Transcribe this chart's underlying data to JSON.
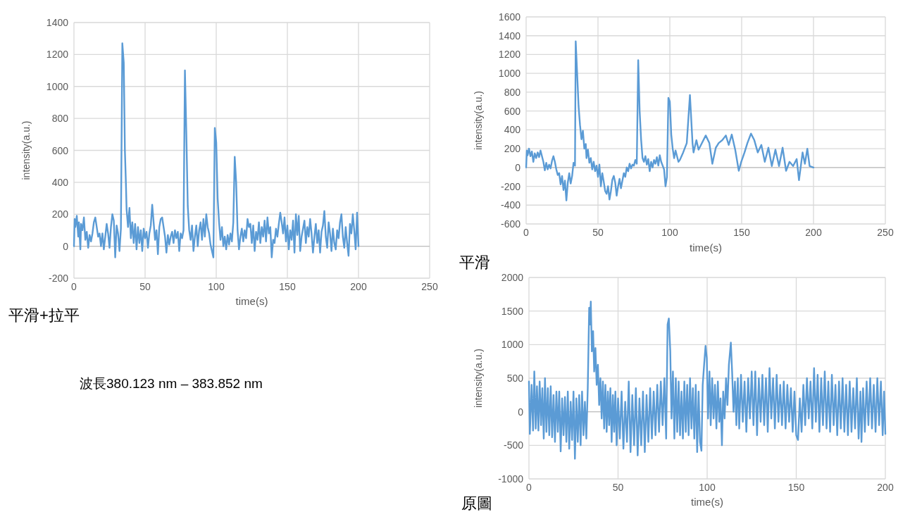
{
  "chart_data": [
    {
      "type": "line",
      "title": "平滑+拉平",
      "xlabel": "time(s)",
      "ylabel": "intensity(a.u.)",
      "color": "#5b9bd5",
      "grid": true,
      "xlim": [
        0,
        250
      ],
      "ylim": [
        -200,
        1400
      ],
      "xticks": [
        0,
        50,
        100,
        150,
        200,
        250
      ],
      "yticks": [
        -200,
        0,
        200,
        400,
        600,
        800,
        1000,
        1200,
        1400
      ],
      "x": [
        0,
        0.5,
        1,
        2,
        3,
        3.5,
        4.5,
        5,
        6,
        7,
        8,
        9,
        10,
        11,
        12,
        13,
        14,
        15,
        16,
        17,
        18,
        19,
        20,
        21,
        22,
        23,
        24,
        25,
        26,
        27,
        28,
        29,
        30,
        31,
        32,
        33,
        34,
        35,
        35.8,
        36.5,
        37,
        38,
        39,
        40,
        41,
        42,
        43,
        44,
        45,
        46,
        47,
        48,
        49,
        50,
        51,
        52,
        53,
        54,
        55,
        56,
        57,
        58,
        59,
        60,
        61,
        62,
        63,
        64,
        65,
        66,
        67,
        68,
        69,
        70,
        71,
        72,
        73,
        74,
        75,
        76,
        77,
        78,
        79,
        80,
        81,
        82,
        83,
        84,
        85,
        86,
        87,
        88,
        89,
        90,
        91,
        92,
        93,
        94,
        95,
        96,
        97,
        98,
        99,
        100,
        101,
        102,
        103,
        104,
        105,
        106,
        107,
        108,
        109,
        110,
        111,
        112,
        113,
        114,
        115,
        116,
        117,
        118,
        119,
        120,
        121,
        122,
        123,
        124,
        125,
        126,
        127,
        128,
        129,
        130,
        131,
        132,
        133,
        134,
        135,
        136,
        137,
        138,
        139,
        140,
        141,
        142,
        143,
        144,
        145,
        146,
        147,
        148,
        149,
        150,
        151,
        152,
        153,
        154,
        155,
        156,
        157,
        158,
        159,
        160,
        161,
        162,
        163,
        164,
        165,
        166,
        167,
        168,
        169,
        170,
        171,
        172,
        173,
        174,
        175,
        176,
        177,
        178,
        179,
        180,
        181,
        182,
        183,
        184,
        185,
        186,
        187,
        188,
        189,
        190,
        191,
        192,
        193,
        194,
        195,
        196,
        197,
        198,
        199,
        200
      ],
      "values": [
        0,
        170,
        120,
        190,
        60,
        150,
        -20,
        140,
        100,
        180,
        40,
        90,
        -10,
        70,
        30,
        80,
        150,
        180,
        120,
        60,
        80,
        0,
        80,
        -20,
        60,
        140,
        80,
        -10,
        120,
        200,
        160,
        -70,
        130,
        80,
        -30,
        110,
        1270,
        1150,
        600,
        400,
        230,
        120,
        240,
        50,
        150,
        20,
        140,
        -20,
        120,
        20,
        100,
        -30,
        110,
        50,
        90,
        -10,
        80,
        130,
        260,
        150,
        40,
        100,
        -50,
        120,
        170,
        180,
        120,
        60,
        -40,
        70,
        10,
        60,
        90,
        20,
        100,
        50,
        90,
        -30,
        80,
        50,
        100,
        1100,
        700,
        250,
        100,
        40,
        130,
        -30,
        60,
        130,
        0,
        100,
        150,
        40,
        170,
        60,
        200,
        120,
        80,
        10,
        -30,
        -70,
        740,
        650,
        300,
        150,
        40,
        120,
        0,
        60,
        -20,
        70,
        10,
        80,
        30,
        150,
        560,
        400,
        100,
        -20,
        60,
        110,
        30,
        100,
        50,
        170,
        120,
        140,
        20,
        130,
        -30,
        90,
        40,
        150,
        20,
        120,
        60,
        160,
        30,
        180,
        80,
        120,
        -70,
        40,
        20,
        110,
        60,
        140,
        210,
        150,
        80,
        180,
        30,
        130,
        -20,
        100,
        40,
        160,
        -40,
        200,
        70,
        190,
        -30,
        60,
        110,
        160,
        20,
        120,
        60,
        170,
        80,
        -40,
        60,
        140,
        20,
        100,
        -40,
        90,
        130,
        220,
        60,
        -10,
        150,
        80,
        -30,
        110,
        20,
        -20,
        100,
        50,
        150,
        200,
        60,
        -10,
        120,
        20,
        -60,
        140,
        80,
        200,
        100,
        -20,
        210,
        0
      ]
    },
    {
      "type": "line",
      "title": "平滑",
      "xlabel": "time(s)",
      "ylabel": "intensity(a.u.)",
      "color": "#5b9bd5",
      "grid": true,
      "xlim": [
        0,
        250
      ],
      "ylim": [
        -600,
        1600
      ],
      "xticks": [
        0,
        50,
        100,
        150,
        200,
        250
      ],
      "yticks": [
        -600,
        -400,
        -200,
        0,
        200,
        400,
        600,
        800,
        1000,
        1200,
        1400,
        1600
      ],
      "x": [
        0,
        0.5,
        1,
        2,
        3,
        4,
        5,
        6,
        7,
        8,
        9,
        10,
        11,
        12,
        13,
        14,
        15,
        16,
        17,
        18,
        19,
        20,
        21,
        22,
        23,
        24,
        25,
        26,
        27,
        28,
        29,
        30,
        31,
        32,
        33,
        34,
        34.5,
        35.5,
        36.5,
        37.5,
        38.5,
        39.5,
        40.5,
        41.5,
        42,
        43,
        44,
        45,
        46,
        47,
        48,
        49,
        50,
        51,
        52,
        53,
        54,
        55,
        56,
        57,
        58,
        59,
        60,
        61,
        62,
        63,
        64,
        65,
        66,
        67,
        68,
        69,
        70,
        71,
        72,
        73,
        74,
        75,
        76,
        77,
        78,
        79,
        80,
        81,
        82,
        83,
        84,
        85,
        86,
        87,
        88,
        89,
        90,
        91,
        92,
        93,
        94,
        95,
        96,
        97,
        98,
        99,
        100,
        101,
        102,
        103,
        104,
        105,
        106,
        107,
        109.3,
        111.8,
        114,
        115.8,
        116.5,
        118.5,
        120,
        121.7,
        125,
        127.5,
        129.6,
        132,
        134,
        136.5,
        139,
        141,
        143.1,
        145.5,
        148,
        149.7,
        152,
        154,
        156.5,
        158.8,
        161.2,
        163.7,
        166.1,
        168.6,
        171,
        173.5,
        176,
        178.5,
        180.9,
        183.3,
        185.8,
        188.3,
        189.9,
        192.4,
        194,
        195.7,
        197.3,
        200
      ],
      "values": [
        0,
        180,
        130,
        200,
        120,
        170,
        60,
        150,
        100,
        160,
        110,
        180,
        120,
        60,
        -30,
        50,
        -20,
        30,
        -10,
        70,
        120,
        60,
        -20,
        -80,
        -60,
        -180,
        -90,
        -240,
        -140,
        -350,
        -160,
        -60,
        -170,
        -90,
        50,
        20,
        1340,
        1000,
        650,
        450,
        300,
        390,
        200,
        250,
        100,
        190,
        50,
        100,
        -20,
        60,
        -40,
        20,
        -100,
        30,
        -200,
        -60,
        -150,
        -250,
        -280,
        -200,
        -340,
        -250,
        -130,
        -90,
        -160,
        -300,
        -200,
        -120,
        -220,
        -140,
        -60,
        -100,
        0,
        -40,
        40,
        -10,
        30,
        20,
        80,
        40,
        1140,
        600,
        300,
        100,
        60,
        120,
        30,
        90,
        -40,
        60,
        0,
        80,
        40,
        110,
        20,
        130,
        60,
        20,
        -20,
        -200,
        -100,
        740,
        700,
        350,
        200,
        100,
        180,
        120,
        60,
        80,
        160,
        260,
        770,
        260,
        160,
        290,
        190,
        240,
        340,
        260,
        40,
        210,
        260,
        290,
        340,
        240,
        350,
        190,
        -35,
        60,
        160,
        260,
        360,
        290,
        160,
        240,
        60,
        210,
        15,
        190,
        15,
        210,
        -35,
        60,
        15,
        90,
        -135,
        160,
        40,
        200,
        15,
        0
      ]
    },
    {
      "type": "line",
      "title": "原圖",
      "xlabel": "time(s)",
      "ylabel": "intensity(a.u.)",
      "color": "#5b9bd5",
      "grid": true,
      "xlim": [
        0,
        200
      ],
      "ylim": [
        -1000,
        2000
      ],
      "xticks": [
        0,
        50,
        100,
        150,
        200
      ],
      "yticks": [
        -1000,
        -500,
        0,
        500,
        1000,
        1500,
        2000
      ],
      "x": [
        0,
        0.5,
        1.5,
        2.3,
        3,
        3.8,
        4.5,
        5.3,
        6,
        6.8,
        7.5,
        8.3,
        9,
        9.8,
        10.6,
        11.4,
        12.2,
        13,
        13.8,
        14.6,
        15.4,
        16.2,
        17,
        17.8,
        18.6,
        19.4,
        20.2,
        21,
        21.8,
        22.6,
        23.4,
        24.2,
        25,
        25.8,
        26.6,
        27.4,
        28.2,
        29,
        29.8,
        30.6,
        31.4,
        32.2,
        33,
        33.8,
        34.3,
        34.7,
        35.3,
        36,
        36.6,
        37.3,
        38,
        38.7,
        39.4,
        40.1,
        40.8,
        41.5,
        42.2,
        42.9,
        43.6,
        44.3,
        45,
        45.7,
        46.4,
        47.1,
        47.8,
        48.5,
        49.2,
        50,
        51,
        52,
        53,
        54,
        55,
        56,
        57,
        58,
        59,
        60,
        61,
        62,
        63,
        64,
        65,
        66,
        67,
        68,
        69,
        70,
        71,
        72,
        73,
        74,
        75,
        76,
        77,
        77.8,
        78.5,
        79.3,
        80,
        80.8,
        81.6,
        82.4,
        83.2,
        84,
        84.8,
        85.6,
        86.4,
        87.2,
        88,
        88.8,
        89.6,
        90.4,
        91.2,
        92,
        92.8,
        93.6,
        94.4,
        95.2,
        96,
        96.8,
        97.5,
        98.3,
        99.1,
        99.8,
        100.5,
        101.3,
        102,
        102.8,
        103.6,
        104.4,
        105.2,
        106,
        106.8,
        107.5,
        108.3,
        109,
        109.8,
        110.6,
        111.4,
        112.2,
        113.3,
        114,
        114.8,
        115.6,
        116.4,
        117.2,
        118,
        119,
        120,
        121,
        122,
        123,
        124,
        125,
        126,
        127,
        128,
        129,
        130,
        131,
        132,
        133,
        134,
        135,
        136,
        137,
        138,
        139,
        140,
        141,
        142,
        143,
        144,
        145,
        146,
        147,
        148,
        149,
        150,
        151,
        152,
        153,
        154,
        155,
        156,
        157,
        158,
        159,
        160,
        161,
        162,
        163,
        164,
        165,
        166,
        167,
        168,
        169,
        170,
        171,
        172,
        173,
        174,
        175,
        176,
        177,
        178,
        179,
        180,
        181,
        182,
        183,
        184,
        185,
        186,
        186.6,
        187.5,
        188.5,
        189.5,
        190.5,
        191.5,
        192.5,
        193.5,
        194.5,
        195.5,
        196.5,
        197.5,
        198.5,
        199.3,
        200
      ],
      "values": [
        450,
        -330,
        400,
        -280,
        600,
        -250,
        380,
        -280,
        450,
        -200,
        350,
        -400,
        500,
        -300,
        350,
        -350,
        380,
        -380,
        250,
        -450,
        300,
        -300,
        300,
        -590,
        200,
        -350,
        220,
        -450,
        300,
        -550,
        150,
        -420,
        300,
        -700,
        200,
        -450,
        250,
        -500,
        300,
        -350,
        150,
        -400,
        350,
        1550,
        1300,
        1640,
        900,
        1200,
        600,
        950,
        400,
        700,
        100,
        500,
        -100,
        450,
        -250,
        400,
        -300,
        300,
        -200,
        350,
        -450,
        250,
        -300,
        300,
        -500,
        200,
        -400,
        300,
        -550,
        150,
        -450,
        450,
        -600,
        250,
        -500,
        350,
        -650,
        200,
        -500,
        300,
        -600,
        250,
        -450,
        350,
        -400,
        300,
        -350,
        400,
        -300,
        450,
        -200,
        500,
        -400,
        1300,
        1390,
        900,
        -100,
        600,
        -400,
        500,
        -300,
        450,
        -350,
        300,
        -400,
        450,
        -300,
        400,
        -350,
        500,
        -250,
        350,
        -400,
        400,
        -600,
        300,
        -450,
        -580,
        400,
        700,
        980,
        800,
        -100,
        600,
        -200,
        500,
        -100,
        400,
        -250,
        450,
        -150,
        200,
        -500,
        300,
        -100,
        500,
        100,
        700,
        1030,
        600,
        0,
        450,
        -200,
        500,
        -250,
        550,
        -150,
        450,
        -300,
        500,
        -100,
        600,
        -200,
        600,
        -350,
        500,
        -150,
        550,
        -200,
        500,
        -300,
        650,
        -100,
        500,
        -250,
        550,
        -150,
        400,
        -200,
        450,
        -250,
        400,
        -150,
        350,
        -300,
        300,
        -350,
        -420,
        200,
        -300,
        400,
        -200,
        500,
        -100,
        450,
        -250,
        650,
        -150,
        550,
        -300,
        500,
        -200,
        600,
        -250,
        450,
        -300,
        550,
        -200,
        400,
        -350,
        450,
        -250,
        500,
        -300,
        400,
        -350,
        450,
        -300,
        350,
        -250,
        500,
        -400,
        300,
        -450,
        350,
        -300,
        450,
        -200,
        500,
        -250,
        400,
        -300,
        500,
        -200,
        450,
        -350,
        300,
        -330
      ]
    },
    {
      "type": "other",
      "title": "波長380.123 nm – 383.852 nm"
    }
  ]
}
